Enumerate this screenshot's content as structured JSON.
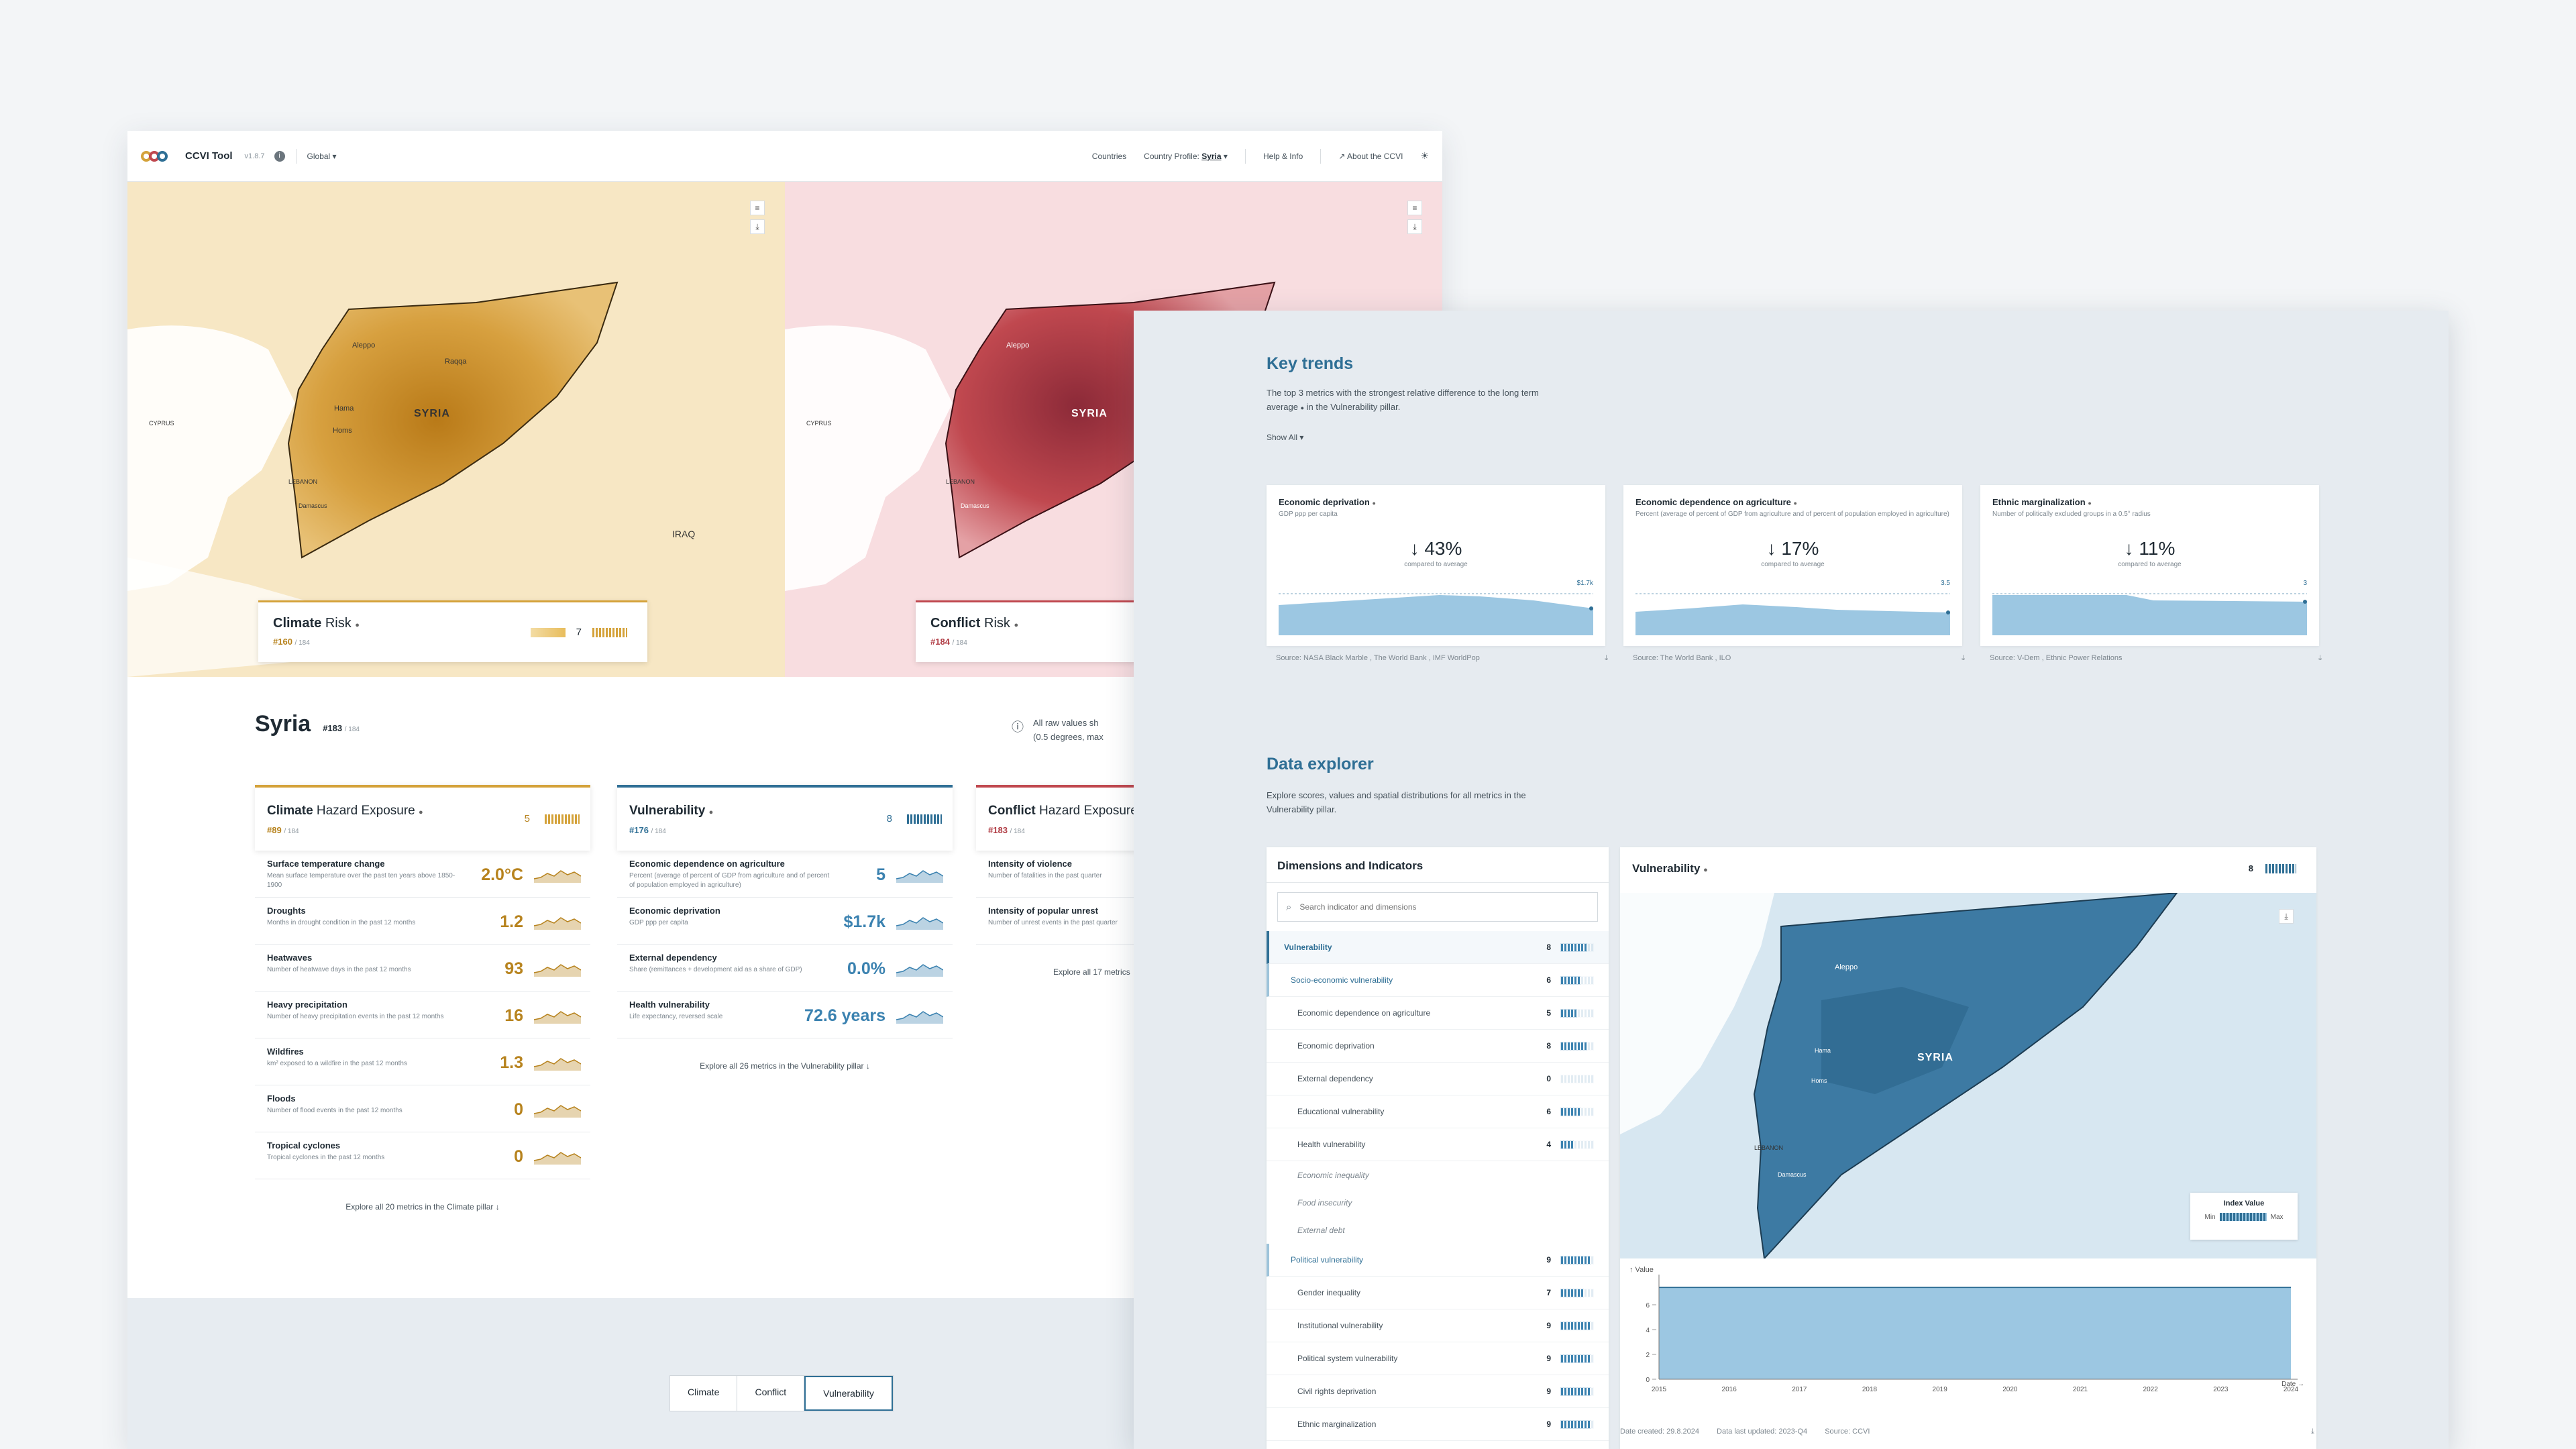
{
  "header": {
    "tool_name": "CCVI Tool",
    "version": "v1.8.7",
    "scope": "Global",
    "nav": {
      "countries": "Countries",
      "country_profile": "Country Profile:",
      "country_selected": "Syria",
      "help": "Help & Info",
      "about": "About the CCVI"
    }
  },
  "maps": {
    "climate": {
      "title_bold": "Climate",
      "title_rest": "Risk",
      "rank": "#160",
      "rank_total": "/ 184",
      "score": "7"
    },
    "conflict": {
      "title_bold": "Conflict",
      "title_rest": "Risk",
      "rank": "#184",
      "rank_total": "/ 184"
    },
    "labels": {
      "syria": "SYRIA",
      "iraq": "IRAQ",
      "cyprus": "CYPRUS",
      "lebanon": "LEBANON",
      "aleppo": "Aleppo",
      "raqqa": "Raqqa",
      "homs": "Homs",
      "hama": "Hama",
      "damascus": "Damascus"
    }
  },
  "country": {
    "name": "Syria",
    "rank": "#183",
    "rank_total": "/ 184",
    "raw_note_1": "All raw values sh",
    "raw_note_2": "(0.5 degrees, max"
  },
  "pillars": {
    "climate": {
      "title_bold": "Climate",
      "title_rest": "Hazard Exposure",
      "rank": "#89",
      "rank_total": "/ 184",
      "score": "5",
      "metrics": [
        {
          "name": "Surface temperature change",
          "desc": "Mean surface temperature over the past ten years above 1850-1900",
          "value": "2.0°C"
        },
        {
          "name": "Droughts",
          "desc": "Months in drought condition in the past 12 months",
          "value": "1.2"
        },
        {
          "name": "Heatwaves",
          "desc": "Number of heatwave days in the past 12 months",
          "value": "93"
        },
        {
          "name": "Heavy precipitation",
          "desc": "Number of heavy precipitation events in the past 12 months",
          "value": "16"
        },
        {
          "name": "Wildfires",
          "desc": "km² exposed to a wildfire in the past 12 months",
          "value": "1.3"
        },
        {
          "name": "Floods",
          "desc": "Number of flood events in the past 12 months",
          "value": "0"
        },
        {
          "name": "Tropical cyclones",
          "desc": "Tropical cyclones in the past 12 months",
          "value": "0"
        }
      ],
      "explore": "Explore all 20 metrics in the Climate pillar"
    },
    "vulnerability": {
      "title_bold": "Vulnerability",
      "rank": "#176",
      "rank_total": "/ 184",
      "score": "8",
      "metrics": [
        {
          "name": "Economic dependence on agriculture",
          "desc": "Percent (average of percent of GDP from agriculture and of percent of population employed in agriculture)",
          "value": "5"
        },
        {
          "name": "Economic deprivation",
          "desc": "GDP ppp per capita",
          "value": "$1.7k"
        },
        {
          "name": "External dependency",
          "desc": "Share (remittances + development aid as a share of GDP)",
          "value": "0.0%"
        },
        {
          "name": "Health vulnerability",
          "desc": "Life expectancy, reversed scale",
          "value": "72.6 years"
        }
      ],
      "explore": "Explore all 26 metrics in the Vulnerability pillar"
    },
    "conflict": {
      "title_bold": "Conflict",
      "title_rest": "Hazard Exposure",
      "rank": "#183",
      "rank_total": "/ 184",
      "metrics": [
        {
          "name": "Intensity of violence",
          "desc": "Number of fatalities in the past quarter"
        },
        {
          "name": "Intensity of popular unrest",
          "desc": "Number of unrest events in the past quarter"
        }
      ],
      "explore": "Explore all 17 metrics"
    }
  },
  "pillar_tabs": [
    "Climate",
    "Conflict",
    "Vulnerability"
  ],
  "key_trends": {
    "title": "Key trends",
    "desc_1": "The top 3 metrics with the strongest relative difference to the long term average",
    "desc_2": "in the Vulnerability pillar.",
    "show_all": "Show All",
    "cards": [
      {
        "name": "Economic deprivation",
        "desc": "GDP ppp per capita",
        "change": "↓ 43%",
        "compared": "compared to average",
        "end_label": "$1.7k",
        "source": "Source: NASA Black Marble , The World Bank , IMF WorldPop"
      },
      {
        "name": "Economic dependence on agriculture",
        "desc": "Percent (average of percent of GDP from agriculture and of percent of population employed in agriculture)",
        "change": "↓ 17%",
        "compared": "compared to average",
        "end_label": "3.5",
        "source": "Source: The World Bank , ILO"
      },
      {
        "name": "Ethnic marginalization",
        "desc": "Number of politically excluded groups in a 0.5° radius",
        "change": "↓ 11%",
        "compared": "compared to average",
        "end_label": "3",
        "source": "Source: V-Dem , Ethnic Power Relations"
      }
    ]
  },
  "data_explorer": {
    "title": "Data explorer",
    "desc": "Explore scores, values and spatial distributions for all metrics in the Vulnerability pillar.",
    "dimensions_title": "Dimensions and Indicators",
    "search_placeholder": "Search indicator and dimensions",
    "rows": [
      {
        "label": "Vulnerability",
        "value": "8"
      },
      {
        "label": "Socio-economic vulnerability",
        "value": "6"
      },
      {
        "label": "Economic dependence on agriculture",
        "value": "5"
      },
      {
        "label": "Economic deprivation",
        "value": "8"
      },
      {
        "label": "External dependency",
        "value": "0"
      },
      {
        "label": "Educational vulnerability",
        "value": "6"
      },
      {
        "label": "Health vulnerability",
        "value": "4"
      },
      {
        "label": "Economic inequality"
      },
      {
        "label": "Food insecurity"
      },
      {
        "label": "External debt"
      },
      {
        "label": "Political vulnerability",
        "value": "9"
      },
      {
        "label": "Gender inequality",
        "value": "7"
      },
      {
        "label": "Institutional vulnerability",
        "value": "9"
      },
      {
        "label": "Political system vulnerability",
        "value": "9"
      },
      {
        "label": "Civil rights deprivation",
        "value": "9"
      },
      {
        "label": "Ethnic marginalization",
        "value": "9"
      }
    ],
    "viz_title": "Vulnerability",
    "viz_score": "8",
    "legend": {
      "title": "Index Value",
      "min": "Min",
      "max": "Max"
    },
    "map_labels": {
      "syria": "SYRIA",
      "aleppo": "Aleppo",
      "lebanon": "LEBANON",
      "damascus": "Damascus",
      "homs": "Homs",
      "hama": "Hama"
    },
    "foot": {
      "created": "Date created: 29.8.2024",
      "updated": "Data last updated: 2023-Q4",
      "source": "Source: CCVI"
    }
  },
  "chart_data": {
    "type": "area",
    "title": "",
    "ylabel": "Value",
    "xlabel": "",
    "x": [
      "2015",
      "2016",
      "2017",
      "2018",
      "2019",
      "2020",
      "2021",
      "2022",
      "2023",
      "2024"
    ],
    "y_ticks": [
      "0",
      "2",
      "4",
      "6"
    ],
    "series": [
      {
        "values": [
          7.4,
          7.4,
          7.4,
          7.4,
          7.4,
          7.4,
          7.4,
          7.4,
          7.4,
          7.4
        ]
      }
    ],
    "ylim": [
      0,
      8
    ],
    "date_axis_label": "Date"
  },
  "colors": {
    "climate": "#d4a23a",
    "conflict": "#c0484f",
    "vulnerability": "#2f6f95",
    "accent_blue": "#9cc7e2"
  }
}
